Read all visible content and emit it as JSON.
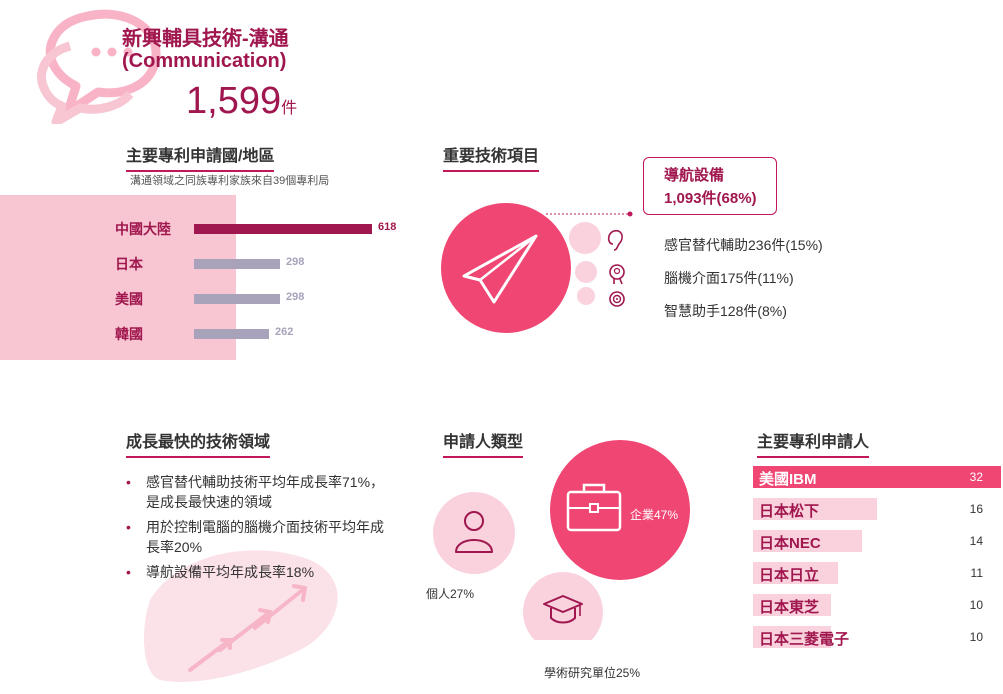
{
  "header": {
    "title_zh": "新興輔具技術-溝通",
    "title_en": "(Communication)",
    "total_count": "1,599",
    "total_unit": "件"
  },
  "sections": {
    "countries": "主要專利申請國/地區",
    "important_techs": "重要技術項目",
    "fastest_growing": "成長最快的技術領域",
    "applicant_types": "申請人類型",
    "top_applicants": "主要專利申請人"
  },
  "country_note": "溝通領域之同族專利家族來自39個專利局",
  "icons": {
    "header": "speech-bubbles-icon",
    "navigation": "paper-plane-icon",
    "sensory": "ear-icon",
    "bci": "brain-head-icon",
    "assistant": "smart-assistant-icon",
    "individual": "person-icon",
    "enterprise": "briefcase-icon",
    "academic": "graduation-cap-icon",
    "growth": "rising-arrows-icon"
  },
  "colors": {
    "primary": "#a0164e",
    "accent": "#f04673",
    "bar_gray": "#a8a3bb",
    "panel_pink": "#f8c6d2",
    "light_pink": "#f9d2dd"
  },
  "callout": {
    "name": "導航設備",
    "value": "1,093件(68%)"
  },
  "tech_items": [
    "感官替代輔助236件(15%)",
    "腦機介面175件(11%)",
    "智慧助手128件(8%)"
  ],
  "bullets": [
    "感官替代輔助技術平均年成長率71%，是成長最快速的領域",
    "用於控制電腦的腦機介面技術平均年成長率20%",
    "導航設備平均年成長率18%"
  ],
  "chart_data": [
    {
      "type": "bar",
      "orientation": "horizontal",
      "categories": [
        "中國大陸",
        "日本",
        "美國",
        "韓國"
      ],
      "values": [
        618,
        298,
        298,
        262
      ],
      "title": "主要專利申請國/地區",
      "highlight_color": "#a0164e",
      "base_color": "#a8a3bb"
    },
    {
      "type": "bubble",
      "categories": [
        "企業",
        "個人",
        "學術研究單位"
      ],
      "values": [
        47,
        27,
        25
      ],
      "labels": [
        "企業47%",
        "個人27%",
        "學術研究單位25%"
      ],
      "title": "申請人類型"
    },
    {
      "type": "bar",
      "orientation": "horizontal",
      "categories": [
        "美國IBM",
        "日本松下",
        "日本NEC",
        "日本日立",
        "日本東芝",
        "日本三菱電子"
      ],
      "values": [
        32,
        16,
        14,
        11,
        10,
        10
      ],
      "title": "主要專利申請人"
    }
  ]
}
